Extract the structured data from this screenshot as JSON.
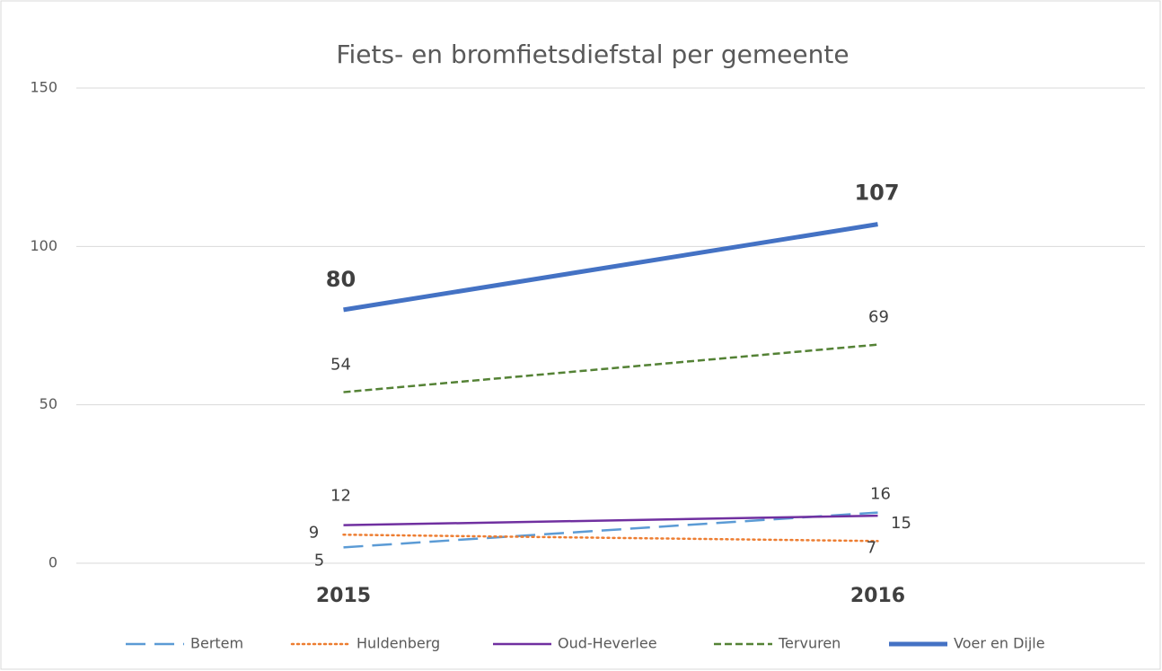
{
  "chart_data": {
    "type": "line",
    "title": "Fiets- en bromfietsdiefstal per gemeente",
    "categories": [
      "2015",
      "2016"
    ],
    "series": [
      {
        "name": "Bertem",
        "color": "#5b9bd5",
        "dash": "dashed",
        "values": [
          5,
          16
        ]
      },
      {
        "name": "Huldenberg",
        "color": "#ed7d31",
        "dash": "dotted",
        "values": [
          9,
          7
        ]
      },
      {
        "name": "Oud-Heverlee",
        "color": "#7030a0",
        "dash": "solid",
        "values": [
          12,
          15
        ]
      },
      {
        "name": "Tervuren",
        "color": "#548235",
        "dash": "short-dashed",
        "values": [
          54,
          69
        ]
      },
      {
        "name": "Voer en Dijle",
        "color": "#4472c4",
        "dash": "solid",
        "highlight": true,
        "values": [
          80,
          107
        ]
      }
    ],
    "ylim": [
      0,
      150
    ],
    "yticks": [
      0,
      50,
      100,
      150
    ],
    "grid": true,
    "legend": "bottom"
  }
}
